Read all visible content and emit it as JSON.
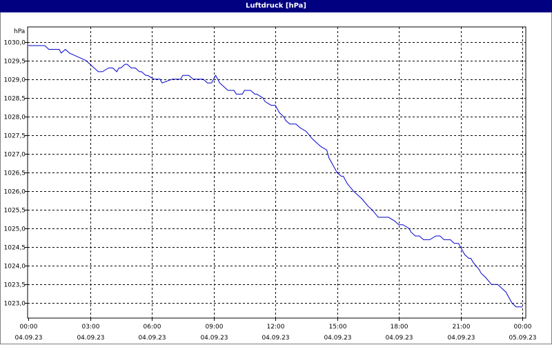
{
  "chart_data": {
    "type": "line",
    "title": "Luftdruck [hPa]",
    "ylabel": "hPa",
    "ylim": [
      1022.6,
      1030.4
    ],
    "ytick_values": [
      1030.0,
      1029.5,
      1029.0,
      1028.5,
      1028.0,
      1027.5,
      1027.0,
      1026.5,
      1026.0,
      1025.5,
      1025.0,
      1024.5,
      1024.0,
      1023.5,
      1023.0
    ],
    "ytick_labels": [
      "1030,0",
      "1029,5",
      "1029,0",
      "1028,5",
      "1028,0",
      "1027,5",
      "1027,0",
      "1026,5",
      "1026,0",
      "1025,5",
      "1025,0",
      "1024,5",
      "1024,0",
      "1023,5",
      "1023,0"
    ],
    "xlim": [
      0,
      24
    ],
    "xticks": [
      {
        "hour": 0,
        "time": "00:00",
        "date": "04.09.23"
      },
      {
        "hour": 3,
        "time": "03:00",
        "date": "04.09.23"
      },
      {
        "hour": 6,
        "time": "06:00",
        "date": "04.09.23"
      },
      {
        "hour": 9,
        "time": "09:00",
        "date": "04.09.23"
      },
      {
        "hour": 12,
        "time": "12:00",
        "date": "04.09.23"
      },
      {
        "hour": 15,
        "time": "15:00",
        "date": "04.09.23"
      },
      {
        "hour": 18,
        "time": "18:00",
        "date": "04.09.23"
      },
      {
        "hour": 21,
        "time": "21:00",
        "date": "04.09.23"
      },
      {
        "hour": 24,
        "time": "00:00",
        "date": "05.09.23"
      }
    ],
    "grid": true,
    "series": [
      {
        "color": "#0000cc",
        "x": [
          0.0,
          0.3,
          0.8,
          1.0,
          1.5,
          1.6,
          1.8,
          2.0,
          2.4,
          2.8,
          3.0,
          3.2,
          3.4,
          3.6,
          3.9,
          4.1,
          4.3,
          4.4,
          4.5,
          4.7,
          4.8,
          5.0,
          5.2,
          5.4,
          5.5,
          5.7,
          5.8,
          6.1,
          6.2,
          6.4,
          6.5,
          7.0,
          7.1,
          7.4,
          7.5,
          7.8,
          8.0,
          8.5,
          8.7,
          8.9,
          9.0,
          9.1,
          9.2,
          9.3,
          9.5,
          9.7,
          9.9,
          10.0,
          10.1,
          10.4,
          10.5,
          10.8,
          11.0,
          11.1,
          11.4,
          11.5,
          11.8,
          12.0,
          12.1,
          12.2,
          12.4,
          12.5,
          12.7,
          12.9,
          13.0,
          13.2,
          13.5,
          13.8,
          14.0,
          14.2,
          14.5,
          14.6,
          14.8,
          15.0,
          15.2,
          15.3,
          15.5,
          15.8,
          16.0,
          16.2,
          16.5,
          16.7,
          17.0,
          17.5,
          17.8,
          18.0,
          18.2,
          18.5,
          18.6,
          18.8,
          19.0,
          19.2,
          19.4,
          19.5,
          19.8,
          20.0,
          20.2,
          20.4,
          20.5,
          20.7,
          20.8,
          20.9,
          21.0,
          21.1,
          21.2,
          21.4,
          21.5,
          21.6,
          21.9,
          22.0,
          22.2,
          22.5,
          22.8,
          23.0,
          23.2,
          23.5,
          23.7,
          23.8,
          24.0
        ],
        "y": [
          1029.9,
          1029.9,
          1029.9,
          1029.8,
          1029.8,
          1029.7,
          1029.8,
          1029.7,
          1029.6,
          1029.5,
          1029.4,
          1029.3,
          1029.2,
          1029.2,
          1029.3,
          1029.3,
          1029.2,
          1029.3,
          1029.3,
          1029.4,
          1029.4,
          1029.3,
          1029.3,
          1029.2,
          1029.2,
          1029.1,
          1029.1,
          1029.0,
          1029.0,
          1029.0,
          1028.9,
          1029.0,
          1029.0,
          1029.0,
          1029.1,
          1029.1,
          1029.0,
          1029.0,
          1028.9,
          1028.9,
          1029.0,
          1029.1,
          1029.0,
          1028.9,
          1028.8,
          1028.7,
          1028.7,
          1028.7,
          1028.6,
          1028.6,
          1028.7,
          1028.7,
          1028.6,
          1028.6,
          1028.5,
          1028.4,
          1028.3,
          1028.3,
          1028.2,
          1028.1,
          1028.0,
          1027.9,
          1027.8,
          1027.8,
          1027.8,
          1027.7,
          1027.6,
          1027.4,
          1027.3,
          1027.2,
          1027.1,
          1026.9,
          1026.7,
          1026.5,
          1026.4,
          1026.4,
          1026.2,
          1026.0,
          1025.9,
          1025.8,
          1025.6,
          1025.5,
          1025.3,
          1025.3,
          1025.2,
          1025.1,
          1025.1,
          1025.0,
          1024.9,
          1024.8,
          1024.8,
          1024.7,
          1024.7,
          1024.7,
          1024.8,
          1024.8,
          1024.7,
          1024.7,
          1024.7,
          1024.6,
          1024.6,
          1024.6,
          1024.5,
          1024.4,
          1024.3,
          1024.2,
          1024.2,
          1024.1,
          1023.9,
          1023.8,
          1023.7,
          1023.5,
          1023.5,
          1023.4,
          1023.3,
          1023.0,
          1022.9,
          1022.9,
          1022.9
        ]
      }
    ]
  }
}
